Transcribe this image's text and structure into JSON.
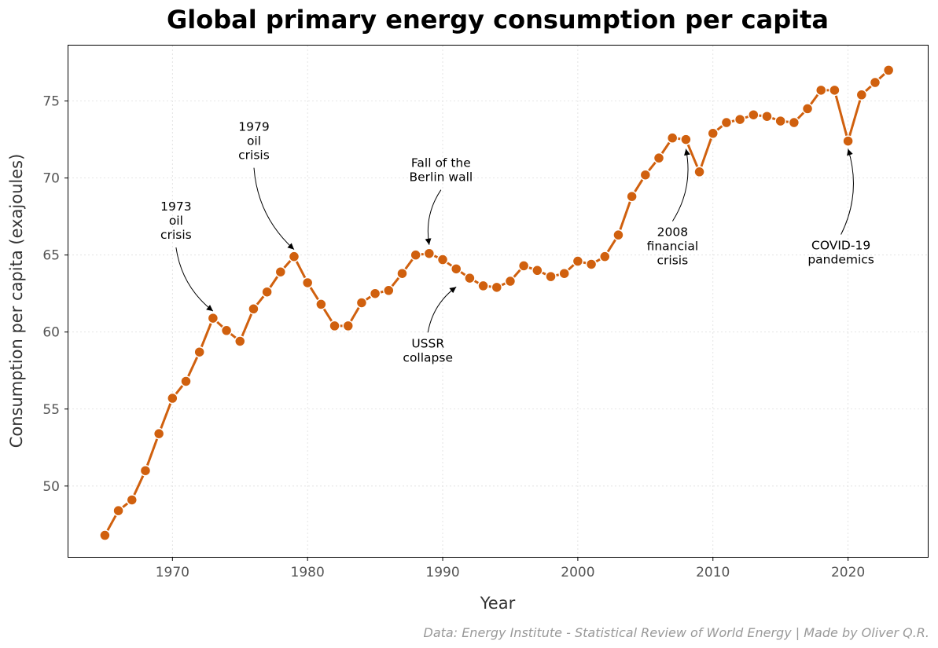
{
  "chart_data": {
    "type": "line",
    "title": "Global primary energy consumption per capita",
    "xlabel": "Year",
    "ylabel": "Consumption per capita (exajoules)",
    "xlim": [
      1962.3,
      2025.9
    ],
    "ylim": [
      45.4,
      78.6
    ],
    "xticks": [
      1970,
      1980,
      1990,
      2000,
      2010,
      2020
    ],
    "yticks": [
      50,
      55,
      60,
      65,
      70,
      75
    ],
    "grid": true,
    "series": [
      {
        "name": "Consumption per capita",
        "color": "#d0600e",
        "x": [
          1965,
          1966,
          1967,
          1968,
          1969,
          1970,
          1971,
          1972,
          1973,
          1974,
          1975,
          1976,
          1977,
          1978,
          1979,
          1980,
          1981,
          1982,
          1983,
          1984,
          1985,
          1986,
          1987,
          1988,
          1989,
          1990,
          1991,
          1992,
          1993,
          1994,
          1995,
          1996,
          1997,
          1998,
          1999,
          2000,
          2001,
          2002,
          2003,
          2004,
          2005,
          2006,
          2007,
          2008,
          2009,
          2010,
          2011,
          2012,
          2013,
          2014,
          2015,
          2016,
          2017,
          2018,
          2019,
          2020,
          2021,
          2022,
          2023
        ],
        "y": [
          46.8,
          48.4,
          49.1,
          51.0,
          53.4,
          55.7,
          56.8,
          58.7,
          60.9,
          60.1,
          59.4,
          61.5,
          62.6,
          63.9,
          64.9,
          63.2,
          61.8,
          60.4,
          60.4,
          61.9,
          62.5,
          62.7,
          63.8,
          65.0,
          65.1,
          64.7,
          64.1,
          63.5,
          63.0,
          62.9,
          63.3,
          64.3,
          64.0,
          63.6,
          63.8,
          64.6,
          64.4,
          64.9,
          66.3,
          68.8,
          70.2,
          71.3,
          72.6,
          72.5,
          70.4,
          72.9,
          73.6,
          73.8,
          74.1,
          74.0,
          73.7,
          73.6,
          74.5,
          75.7,
          75.7,
          72.4,
          75.4,
          76.2,
          77.0
        ]
      }
    ],
    "annotations": [
      {
        "lines": [
          "1973",
          "oil",
          "crisis"
        ],
        "x": 1973,
        "y": 60.9
      },
      {
        "lines": [
          "1979",
          "oil",
          "crisis"
        ],
        "x": 1979,
        "y": 64.9
      },
      {
        "lines": [
          "Fall of the",
          "Berlin wall"
        ],
        "x": 1989,
        "y": 65.1
      },
      {
        "lines": [
          "USSR",
          "collapse"
        ],
        "x": 1991,
        "y": 64.1
      },
      {
        "lines": [
          "2008",
          "financial",
          "crisis"
        ],
        "x": 2008,
        "y": 72.5
      },
      {
        "lines": [
          "COVID-19",
          "pandemics"
        ],
        "x": 2020,
        "y": 72.4
      }
    ],
    "source": "Data: Energy Institute - Statistical Review of World Energy | Made by Oliver Q.R."
  }
}
